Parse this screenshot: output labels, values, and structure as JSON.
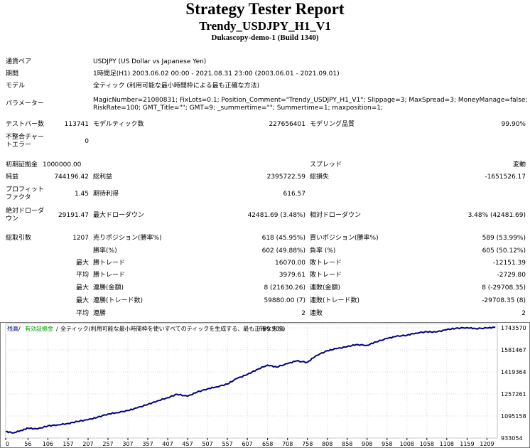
{
  "header": {
    "title": "Strategy Tester Report",
    "subtitle": "Trendy_USDJPY_H1_V1",
    "server": "Dukascopy-demo-1 (Build 1340)"
  },
  "info": {
    "symbol_label": "通貨ペア",
    "symbol_value": "USDJPY (US Dollar vs Japanese Yen)",
    "period_label": "期間",
    "period_value": "1時間足(H1) 2003.06.02 00:00 - 2021.08.31 23:00 (2003.06.01 - 2021.09.01)",
    "model_label": "モデル",
    "model_value": "全ティック (利用可能な最小時間枠による最も正確な方法)",
    "params_label": "パラメーター",
    "params_line1": "MagicNumber=21080831; FixLots=0.1; Position_Comment=\"Trendy_USDJPY_H1_V1\"; Slippage=3; MaxSpread=3; MoneyManage=false;",
    "params_line2": "RiskRate=100; GMT_Title=\"\"; GMT=9; _summertime=\"\"; Summertime=1; maxposition=1;"
  },
  "quality": {
    "bars_label": "テストバー数",
    "bars_value": "113741",
    "ticks_label": "モデルティック数",
    "ticks_value": "227656401",
    "quality_label": "モデリング品質",
    "quality_value": "99.90%",
    "mismatch_label1": "不整合チャー",
    "mismatch_label2": "トエラー",
    "mismatch_value": "0"
  },
  "stats": {
    "deposit_label": "初期証拠金",
    "deposit_value": "1000000.00",
    "spread_label": "スプレッド",
    "spread_value": "変動",
    "net_label": "純益",
    "net_value": "744196.42",
    "gross_profit_label": "総利益",
    "gross_profit_value": "2395722.59",
    "gross_loss_label": "総損失",
    "gross_loss_value": "-1651526.17",
    "pf_label1": "プロフィット",
    "pf_label2": "ファクタ",
    "pf_value": "1.45",
    "expected_label": "期待利得",
    "expected_value": "616.57",
    "absdd_label1": "絶対ドローダ",
    "absdd_label2": "ウン",
    "absdd_value": "29191.47",
    "maxdd_label": "最大ドローダウン",
    "maxdd_value": "42481.69 (3.48%)",
    "reldd_label": "相対ドローダウン",
    "reldd_value": "3.48% (42481.69)",
    "trades_label": "総取引数",
    "trades_value": "1207",
    "short_label": "売りポジション(勝率%)",
    "short_value": "618 (45.95%)",
    "long_label": "買いポジション(勝率%)",
    "long_value": "589 (53.99%)",
    "winrate_label": "勝率(%)",
    "winrate_value": "602 (49.88%)",
    "lossrate_label": "負率 (%)",
    "lossrate_value": "605 (50.12%)",
    "max_label": "最大",
    "avg_label": "平均",
    "win_trade_label": "勝トレード",
    "loss_trade_label": "敗トレード",
    "max_win_trade": "16070.00",
    "max_loss_trade": "-12151.39",
    "avg_win_trade": "3979.61",
    "avg_loss_trade": "-2729.80",
    "consec_win_amount_label": "連勝(金額)",
    "consec_win_amount_value": "8 (21630.26)",
    "consec_loss_amount_label": "連敗(金額)",
    "consec_loss_amount_value": "8 (-29708.35)",
    "consec_win_trades_label": "連勝(トレード数)",
    "consec_win_trades_value": "59880.00 (7)",
    "consec_loss_trades_label": "連敗(トレード数)",
    "consec_loss_trades_value": "-29708.35 (8)",
    "avg_consec_win_label": "連勝",
    "avg_consec_win_value": "2",
    "avg_consec_loss_label": "連敗",
    "avg_consec_loss_value": "2"
  },
  "chart_data": {
    "type": "line",
    "legend_balance": "残高",
    "legend_margin": "有効証拠金",
    "legend_model": "全ティック(利用可能な最小時間枠を使いすべてのティックを生成する、最も正確な方法)",
    "legend_quality": "99.90%",
    "line_color": "#000080",
    "legend_margin_color": "#00a000",
    "x_ticks": [
      0,
      56,
      106,
      157,
      207,
      257,
      307,
      357,
      407,
      457,
      507,
      557,
      607,
      658,
      708,
      758,
      808,
      858,
      908,
      958,
      1008,
      1058,
      1108,
      1159,
      1209
    ],
    "y_ticks": [
      933054,
      1095158,
      1257261,
      1419364,
      1581467,
      1743570
    ],
    "xlim": [
      0,
      1235
    ],
    "ylim": [
      933054,
      1775000
    ],
    "x": [
      0,
      20,
      40,
      56,
      80,
      106,
      130,
      157,
      180,
      207,
      230,
      257,
      280,
      307,
      330,
      357,
      380,
      407,
      430,
      457,
      480,
      507,
      530,
      557,
      580,
      607,
      630,
      658,
      680,
      708,
      730,
      758,
      780,
      808,
      830,
      858,
      880,
      908,
      930,
      958,
      980,
      1008,
      1030,
      1058,
      1080,
      1108,
      1130,
      1159,
      1180,
      1209,
      1230
    ],
    "y": [
      980000,
      972000,
      990000,
      1005000,
      1000000,
      1022000,
      1030000,
      1040000,
      1055000,
      1068000,
      1085000,
      1110000,
      1120000,
      1135000,
      1155000,
      1180000,
      1205000,
      1230000,
      1255000,
      1240000,
      1270000,
      1295000,
      1310000,
      1330000,
      1370000,
      1400000,
      1435000,
      1470000,
      1455000,
      1480000,
      1500000,
      1490000,
      1540000,
      1575000,
      1590000,
      1605000,
      1620000,
      1615000,
      1640000,
      1665000,
      1680000,
      1690000,
      1705000,
      1715000,
      1712000,
      1730000,
      1740000,
      1745000,
      1738000,
      1742000,
      1748000
    ]
  }
}
